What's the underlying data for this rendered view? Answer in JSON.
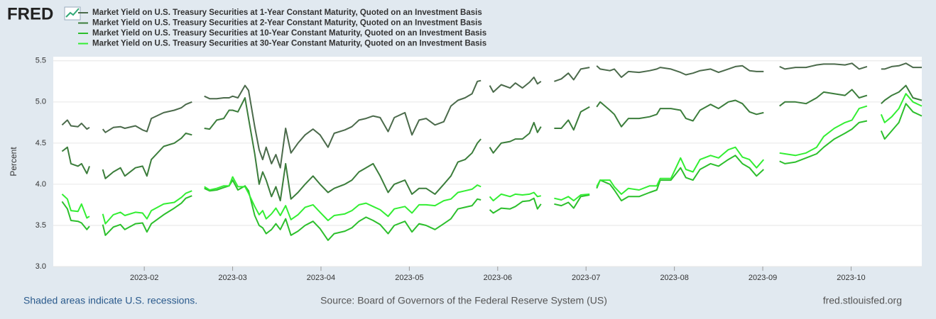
{
  "brand": "FRED",
  "footer_left": "Shaded areas indicate U.S. recessions.",
  "footer_center": "Source: Board of Governors of the Federal Reserve System (US)",
  "footer_right": "fred.stlouisfed.org",
  "chart_data": {
    "type": "line",
    "ylabel": "Percent",
    "ylim": [
      3.0,
      5.55
    ],
    "yticks": [
      {
        "value": 3,
        "label": "3.0"
      },
      3.5,
      {
        "value": 4,
        "label": "4.0"
      },
      4.5,
      {
        "value": 5,
        "label": "5.0"
      },
      5.5
    ],
    "xlim": [
      0.97,
      10.8
    ],
    "xticks": [
      {
        "value": 2,
        "label": "2023-02"
      },
      {
        "value": 3,
        "label": "2023-03"
      },
      {
        "value": 4,
        "label": "2023-04"
      },
      {
        "value": 5,
        "label": "2023-05"
      },
      {
        "value": 6,
        "label": "2023-06"
      },
      {
        "value": 7,
        "label": "2023-07"
      },
      {
        "value": 8,
        "label": "2023-08"
      },
      {
        "value": 9,
        "label": "2023-09"
      },
      {
        "value": 10,
        "label": "2023-10"
      }
    ],
    "grid": true,
    "x": [
      1.07,
      1.13,
      1.17,
      1.25,
      1.29,
      1.35,
      1.38,
      1.45,
      1.53,
      1.56,
      1.65,
      1.73,
      1.78,
      1.9,
      1.98,
      2.03,
      2.08,
      2.22,
      2.34,
      2.42,
      2.47,
      2.54,
      2.61,
      2.68,
      2.74,
      2.82,
      2.9,
      2.96,
      3.0,
      3.06,
      3.14,
      3.18,
      3.25,
      3.3,
      3.34,
      3.38,
      3.44,
      3.49,
      3.54,
      3.6,
      3.66,
      3.74,
      3.82,
      3.91,
      3.99,
      4.08,
      4.15,
      4.27,
      4.35,
      4.43,
      4.51,
      4.59,
      4.67,
      4.76,
      4.83,
      4.95,
      5.03,
      5.11,
      5.19,
      5.29,
      5.39,
      5.47,
      5.55,
      5.63,
      5.71,
      5.77,
      5.81,
      5.86,
      5.91,
      5.95,
      6.04,
      6.14,
      6.2,
      6.28,
      6.36,
      6.41,
      6.45,
      6.49,
      6.56,
      6.64,
      6.72,
      6.8,
      6.86,
      6.94,
      7.04,
      7.08,
      7.12,
      7.16,
      7.27,
      7.32,
      7.4,
      7.48,
      7.6,
      7.72,
      7.8,
      7.84,
      7.96,
      8.07,
      8.13,
      8.21,
      8.29,
      8.41,
      8.5,
      8.61,
      8.69,
      8.77,
      8.85,
      8.93,
      9.01,
      9.1,
      9.19,
      9.25,
      9.37,
      9.49,
      9.61,
      9.69,
      9.81,
      9.93,
      10.01,
      10.09,
      10.18,
      10.26,
      10.34,
      10.38,
      10.46,
      10.54,
      10.62,
      10.7,
      10.8
    ],
    "series": [
      {
        "name": "Market Yield on U.S. Treasury Securities at 1-Year Constant Maturity, Quoted on an Investment Basis",
        "color": "#4b6a4b",
        "values": [
          4.72,
          4.78,
          4.71,
          4.7,
          4.74,
          4.67,
          4.69,
          null,
          4.67,
          4.63,
          4.69,
          4.7,
          4.68,
          4.71,
          4.66,
          4.64,
          4.8,
          4.87,
          4.9,
          4.93,
          4.97,
          5.0,
          null,
          5.07,
          5.04,
          5.04,
          5.05,
          5.05,
          5.07,
          5.05,
          5.2,
          5.14,
          4.7,
          4.42,
          4.3,
          4.45,
          4.25,
          4.36,
          4.2,
          4.68,
          4.38,
          4.5,
          4.6,
          4.67,
          4.6,
          4.45,
          4.62,
          4.66,
          4.7,
          4.78,
          4.8,
          4.83,
          4.81,
          4.64,
          4.81,
          4.87,
          4.6,
          4.78,
          4.8,
          4.72,
          4.76,
          4.95,
          5.02,
          5.05,
          5.1,
          5.25,
          5.26,
          null,
          5.2,
          5.12,
          5.21,
          5.17,
          5.23,
          5.17,
          5.24,
          5.3,
          5.22,
          5.25,
          null,
          5.25,
          5.28,
          5.35,
          5.27,
          5.4,
          5.42,
          null,
          5.44,
          5.4,
          5.38,
          5.4,
          5.3,
          5.37,
          5.36,
          5.38,
          5.4,
          5.42,
          5.4,
          5.36,
          5.33,
          5.35,
          5.38,
          5.4,
          5.36,
          5.4,
          5.43,
          5.44,
          5.38,
          5.37,
          5.37,
          null,
          5.43,
          5.4,
          5.42,
          5.42,
          5.45,
          5.46,
          5.46,
          5.45,
          5.47,
          5.4,
          5.43,
          null,
          5.4,
          5.4,
          5.43,
          5.44,
          5.47,
          5.42,
          5.42
        ]
      },
      {
        "name": "Market Yield on U.S. Treasury Securities at 2-Year Constant Maturity, Quoted on an Investment Basis",
        "color": "#3b7d3b",
        "values": [
          4.4,
          4.45,
          4.25,
          4.22,
          4.25,
          4.13,
          4.22,
          null,
          4.18,
          4.07,
          4.15,
          4.2,
          4.1,
          4.2,
          4.22,
          4.1,
          4.3,
          4.46,
          4.5,
          4.56,
          4.62,
          4.6,
          null,
          4.68,
          4.67,
          4.78,
          4.8,
          4.9,
          4.9,
          4.88,
          5.05,
          4.8,
          4.37,
          4.0,
          4.15,
          4.05,
          3.85,
          3.97,
          3.8,
          4.25,
          3.82,
          3.9,
          4.0,
          4.1,
          4.0,
          3.9,
          3.95,
          4.0,
          4.05,
          4.15,
          4.2,
          4.25,
          4.1,
          3.9,
          4.0,
          4.05,
          3.88,
          3.95,
          3.95,
          3.88,
          4.0,
          4.1,
          4.27,
          4.3,
          4.38,
          4.5,
          4.55,
          null,
          4.45,
          4.38,
          4.5,
          4.52,
          4.55,
          4.55,
          4.62,
          4.75,
          4.63,
          4.7,
          null,
          4.68,
          4.68,
          4.78,
          4.66,
          4.88,
          4.94,
          null,
          4.94,
          5.0,
          4.9,
          4.85,
          4.7,
          4.8,
          4.8,
          4.82,
          4.85,
          4.92,
          4.92,
          4.9,
          4.8,
          4.77,
          4.9,
          4.97,
          4.92,
          5.0,
          5.02,
          4.98,
          4.88,
          4.85,
          4.87,
          null,
          4.95,
          5.0,
          5.0,
          4.98,
          5.05,
          5.12,
          5.1,
          5.08,
          5.15,
          5.05,
          5.08,
          null,
          4.98,
          5.02,
          5.08,
          5.12,
          5.2,
          5.05,
          5.02
        ]
      },
      {
        "name": "Market Yield on U.S. Treasury Securities at 10-Year Constant Maturity, Quoted on an Investment Basis",
        "color": "#2cbf2c",
        "values": [
          3.79,
          3.7,
          3.56,
          3.55,
          3.53,
          3.45,
          3.49,
          null,
          3.51,
          3.38,
          3.48,
          3.51,
          3.45,
          3.52,
          3.53,
          3.42,
          3.52,
          3.63,
          3.71,
          3.77,
          3.83,
          3.86,
          null,
          3.95,
          3.92,
          3.93,
          3.96,
          3.98,
          4.05,
          3.93,
          3.98,
          3.92,
          3.62,
          3.5,
          3.47,
          3.4,
          3.45,
          3.52,
          3.45,
          3.58,
          3.38,
          3.43,
          3.5,
          3.55,
          3.46,
          3.32,
          3.4,
          3.43,
          3.47,
          3.55,
          3.6,
          3.56,
          3.51,
          3.4,
          3.5,
          3.55,
          3.42,
          3.52,
          3.5,
          3.45,
          3.52,
          3.58,
          3.7,
          3.72,
          3.74,
          3.82,
          3.81,
          null,
          3.69,
          3.65,
          3.71,
          3.7,
          3.73,
          3.79,
          3.8,
          3.83,
          3.7,
          3.76,
          null,
          3.76,
          3.74,
          3.78,
          3.71,
          3.85,
          3.87,
          null,
          3.95,
          4.05,
          4.0,
          3.93,
          3.8,
          3.85,
          3.85,
          3.9,
          3.93,
          4.05,
          4.05,
          4.2,
          4.08,
          4.05,
          4.18,
          4.25,
          4.22,
          4.3,
          4.35,
          4.25,
          4.2,
          4.1,
          4.18,
          null,
          4.28,
          4.25,
          4.27,
          4.32,
          4.37,
          4.45,
          4.55,
          4.62,
          4.67,
          4.75,
          4.77,
          null,
          4.65,
          4.55,
          4.65,
          4.75,
          4.98,
          4.88,
          4.83
        ]
      },
      {
        "name": "Market Yield on U.S. Treasury Securities at 30-Year Constant Maturity, Quoted on an Investment Basis",
        "color": "#33ee33",
        "values": [
          3.88,
          3.82,
          3.68,
          3.67,
          3.76,
          3.59,
          3.61,
          null,
          3.64,
          3.52,
          3.63,
          3.66,
          3.62,
          3.66,
          3.65,
          3.58,
          3.68,
          3.76,
          3.78,
          3.84,
          3.89,
          3.92,
          null,
          3.97,
          3.93,
          3.95,
          3.98,
          3.98,
          4.09,
          3.97,
          3.97,
          3.89,
          3.73,
          3.63,
          3.68,
          3.58,
          3.64,
          3.71,
          3.62,
          3.74,
          3.57,
          3.63,
          3.72,
          3.75,
          3.66,
          3.56,
          3.62,
          3.64,
          3.68,
          3.75,
          3.77,
          3.73,
          3.69,
          3.61,
          3.7,
          3.73,
          3.65,
          3.75,
          3.75,
          3.74,
          3.8,
          3.82,
          3.9,
          3.92,
          3.94,
          3.99,
          3.97,
          null,
          3.85,
          3.8,
          3.88,
          3.85,
          3.88,
          3.87,
          3.88,
          3.9,
          3.85,
          3.86,
          null,
          3.83,
          3.81,
          3.85,
          3.8,
          3.87,
          3.88,
          null,
          3.97,
          4.05,
          4.05,
          3.97,
          3.88,
          3.95,
          3.93,
          3.98,
          3.98,
          4.07,
          4.07,
          4.32,
          4.18,
          4.15,
          4.3,
          4.35,
          4.32,
          4.42,
          4.45,
          4.33,
          4.3,
          4.2,
          4.3,
          null,
          4.38,
          4.37,
          4.35,
          4.38,
          4.45,
          4.58,
          4.68,
          4.75,
          4.78,
          4.92,
          4.95,
          null,
          4.85,
          4.75,
          4.82,
          4.92,
          5.1,
          5.0,
          4.95
        ]
      }
    ]
  }
}
